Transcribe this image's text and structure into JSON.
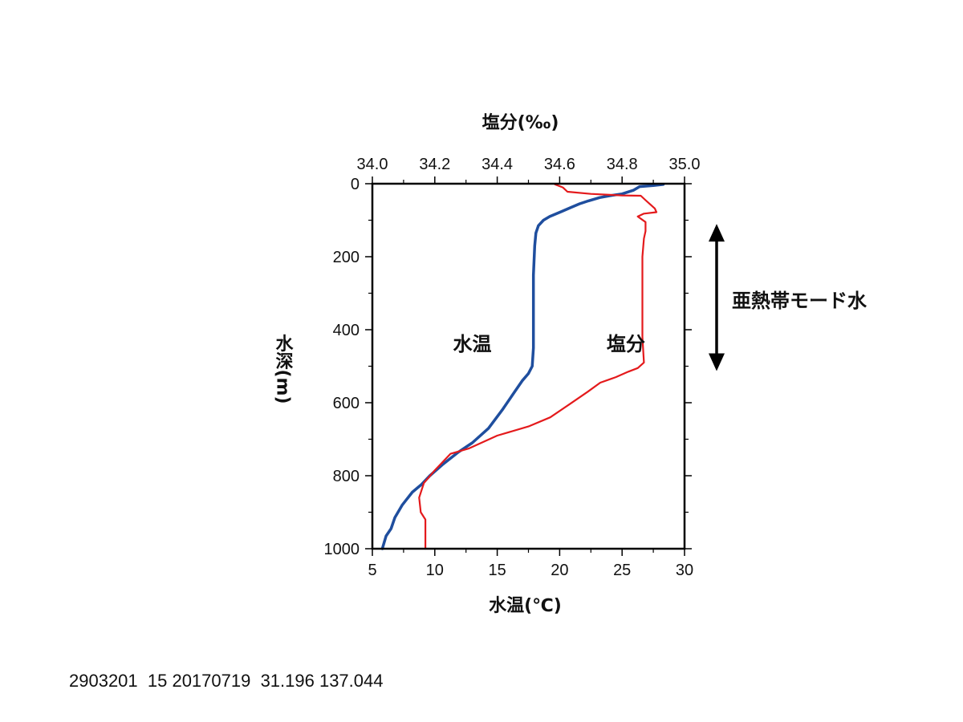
{
  "caption": "2903201  15 20170719  31.196 137.044",
  "colors": {
    "temperature": "#1f4e9e",
    "salinity": "#e41a1c",
    "axis": "#000000"
  },
  "chart_data": {
    "type": "line",
    "x_bottom": {
      "label": "水温(℃)",
      "range": [
        5,
        30
      ],
      "ticks": [
        5,
        10,
        15,
        20,
        25,
        30
      ]
    },
    "x_top": {
      "label": "塩分(‰)",
      "range": [
        34.0,
        35.0
      ],
      "ticks": [
        "34.0",
        "34.2",
        "34.4",
        "34.6",
        "34.8",
        "35.0"
      ],
      "tick_values": [
        34.0,
        34.2,
        34.4,
        34.6,
        34.8,
        35.0
      ]
    },
    "y": {
      "label": "水深(m)",
      "range": [
        0,
        1000
      ],
      "inverted": true,
      "ticks": [
        0,
        200,
        400,
        600,
        800,
        1000
      ]
    },
    "series": [
      {
        "name": "水温",
        "axis": "bottom",
        "color": "#1f4e9e",
        "points": [
          [
            28.3,
            2
          ],
          [
            27.5,
            5
          ],
          [
            26.4,
            8
          ],
          [
            25.9,
            18
          ],
          [
            25.0,
            28
          ],
          [
            24.0,
            33
          ],
          [
            23.2,
            38
          ],
          [
            22.3,
            47
          ],
          [
            21.6,
            55
          ],
          [
            20.9,
            65
          ],
          [
            20.1,
            77
          ],
          [
            19.2,
            90
          ],
          [
            18.7,
            100
          ],
          [
            18.3,
            115
          ],
          [
            18.1,
            135
          ],
          [
            18.0,
            170
          ],
          [
            17.9,
            250
          ],
          [
            17.9,
            350
          ],
          [
            17.9,
            450
          ],
          [
            17.8,
            500
          ],
          [
            17.5,
            520
          ],
          [
            17.0,
            540
          ],
          [
            16.4,
            570
          ],
          [
            15.4,
            620
          ],
          [
            14.3,
            670
          ],
          [
            13.0,
            710
          ],
          [
            11.9,
            735
          ],
          [
            10.6,
            770
          ],
          [
            9.6,
            800
          ],
          [
            8.9,
            825
          ],
          [
            8.2,
            845
          ],
          [
            7.4,
            880
          ],
          [
            6.8,
            915
          ],
          [
            6.5,
            945
          ],
          [
            6.1,
            965
          ],
          [
            5.8,
            1000
          ]
        ]
      },
      {
        "name": "塩分",
        "axis": "top",
        "color": "#e41a1c",
        "points": [
          [
            34.585,
            2
          ],
          [
            34.61,
            10
          ],
          [
            34.625,
            22
          ],
          [
            34.7,
            28
          ],
          [
            34.8,
            32
          ],
          [
            34.86,
            33
          ],
          [
            34.875,
            45
          ],
          [
            34.905,
            68
          ],
          [
            34.91,
            78
          ],
          [
            34.87,
            82
          ],
          [
            34.85,
            90
          ],
          [
            34.875,
            105
          ],
          [
            34.875,
            130
          ],
          [
            34.87,
            150
          ],
          [
            34.865,
            200
          ],
          [
            34.865,
            300
          ],
          [
            34.865,
            420
          ],
          [
            34.87,
            490
          ],
          [
            34.85,
            505
          ],
          [
            34.82,
            515
          ],
          [
            34.78,
            530
          ],
          [
            34.73,
            545
          ],
          [
            34.69,
            570
          ],
          [
            34.63,
            605
          ],
          [
            34.57,
            640
          ],
          [
            34.5,
            665
          ],
          [
            34.4,
            690
          ],
          [
            34.31,
            725
          ],
          [
            34.25,
            740
          ],
          [
            34.2,
            785
          ],
          [
            34.165,
            820
          ],
          [
            34.15,
            860
          ],
          [
            34.155,
            900
          ],
          [
            34.17,
            920
          ],
          [
            34.17,
            960
          ],
          [
            34.17,
            1000
          ]
        ]
      }
    ],
    "annotations": [
      {
        "text": "水温",
        "color": "#1f4e9e",
        "at": [
          13,
          325
        ]
      },
      {
        "text": "塩分",
        "color": "#e41a1c",
        "at": [
          25.3,
          325
        ]
      },
      {
        "text": "亜熱帯モード水",
        "color": "#000000",
        "range_depth": [
          130,
          500
        ]
      }
    ]
  }
}
